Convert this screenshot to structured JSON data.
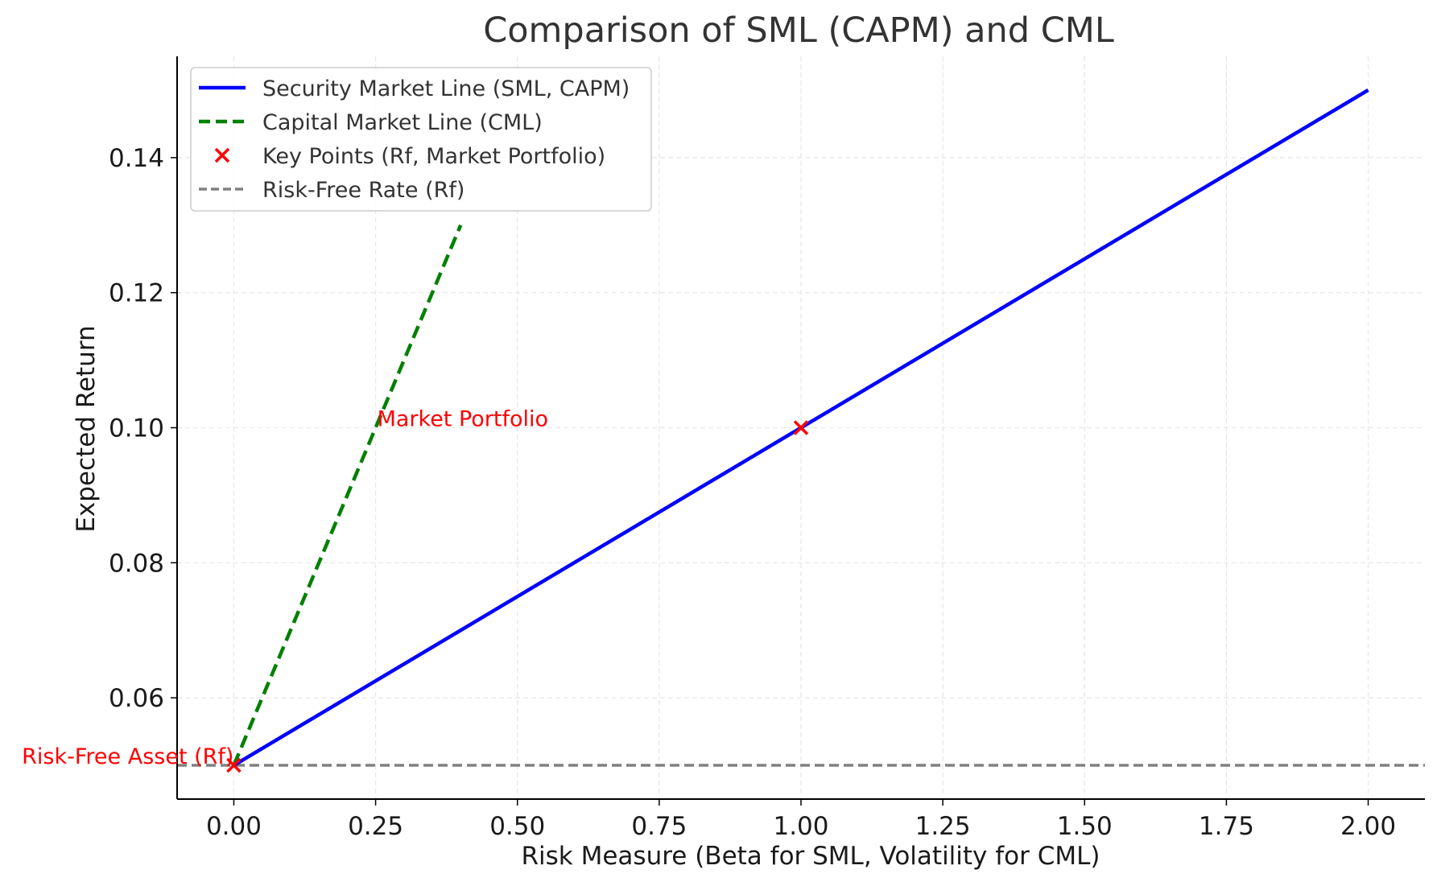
{
  "chart_data": {
    "type": "line",
    "title": "Comparison of SML (CAPM) and CML",
    "xlabel": "Risk Measure (Beta for SML, Volatility for CML)",
    "ylabel": "Expected Return",
    "xlim": [
      -0.1,
      2.1
    ],
    "ylim": [
      0.045,
      0.155
    ],
    "xticks": [
      0.0,
      0.25,
      0.5,
      0.75,
      1.0,
      1.25,
      1.5,
      1.75,
      2.0
    ],
    "xtick_labels": [
      "0.00",
      "0.25",
      "0.50",
      "0.75",
      "1.00",
      "1.25",
      "1.50",
      "1.75",
      "2.00"
    ],
    "yticks": [
      0.06,
      0.08,
      0.1,
      0.12,
      0.14
    ],
    "ytick_labels": [
      "0.06",
      "0.08",
      "0.10",
      "0.12",
      "0.14"
    ],
    "grid": true,
    "legend_position": "upper-left",
    "series": [
      {
        "name": "Security Market Line (SML, CAPM)",
        "style": "solid",
        "color": "#0000ff",
        "x": [
          0.0,
          2.0
        ],
        "y": [
          0.05,
          0.15
        ]
      },
      {
        "name": "Capital Market Line (CML)",
        "style": "dashed",
        "color": "#008000",
        "x": [
          0.0,
          0.4
        ],
        "y": [
          0.05,
          0.13
        ]
      },
      {
        "name": "Key Points (Rf, Market Portfolio)",
        "style": "marker-x",
        "color": "#ff0000",
        "x": [
          0.0,
          1.0
        ],
        "y": [
          0.05,
          0.1
        ]
      },
      {
        "name": "Risk-Free Rate (Rf)",
        "style": "hline-dashed",
        "color": "#808080",
        "y": 0.05
      }
    ],
    "annotations": [
      {
        "text": "Risk-Free Asset (Rf)",
        "x": 0.0,
        "y": 0.05,
        "color": "#ff0000",
        "anchor": "end"
      },
      {
        "text": "Market Portfolio",
        "x": 0.25,
        "y": 0.1,
        "color": "#ff0000",
        "anchor": "start"
      }
    ]
  }
}
